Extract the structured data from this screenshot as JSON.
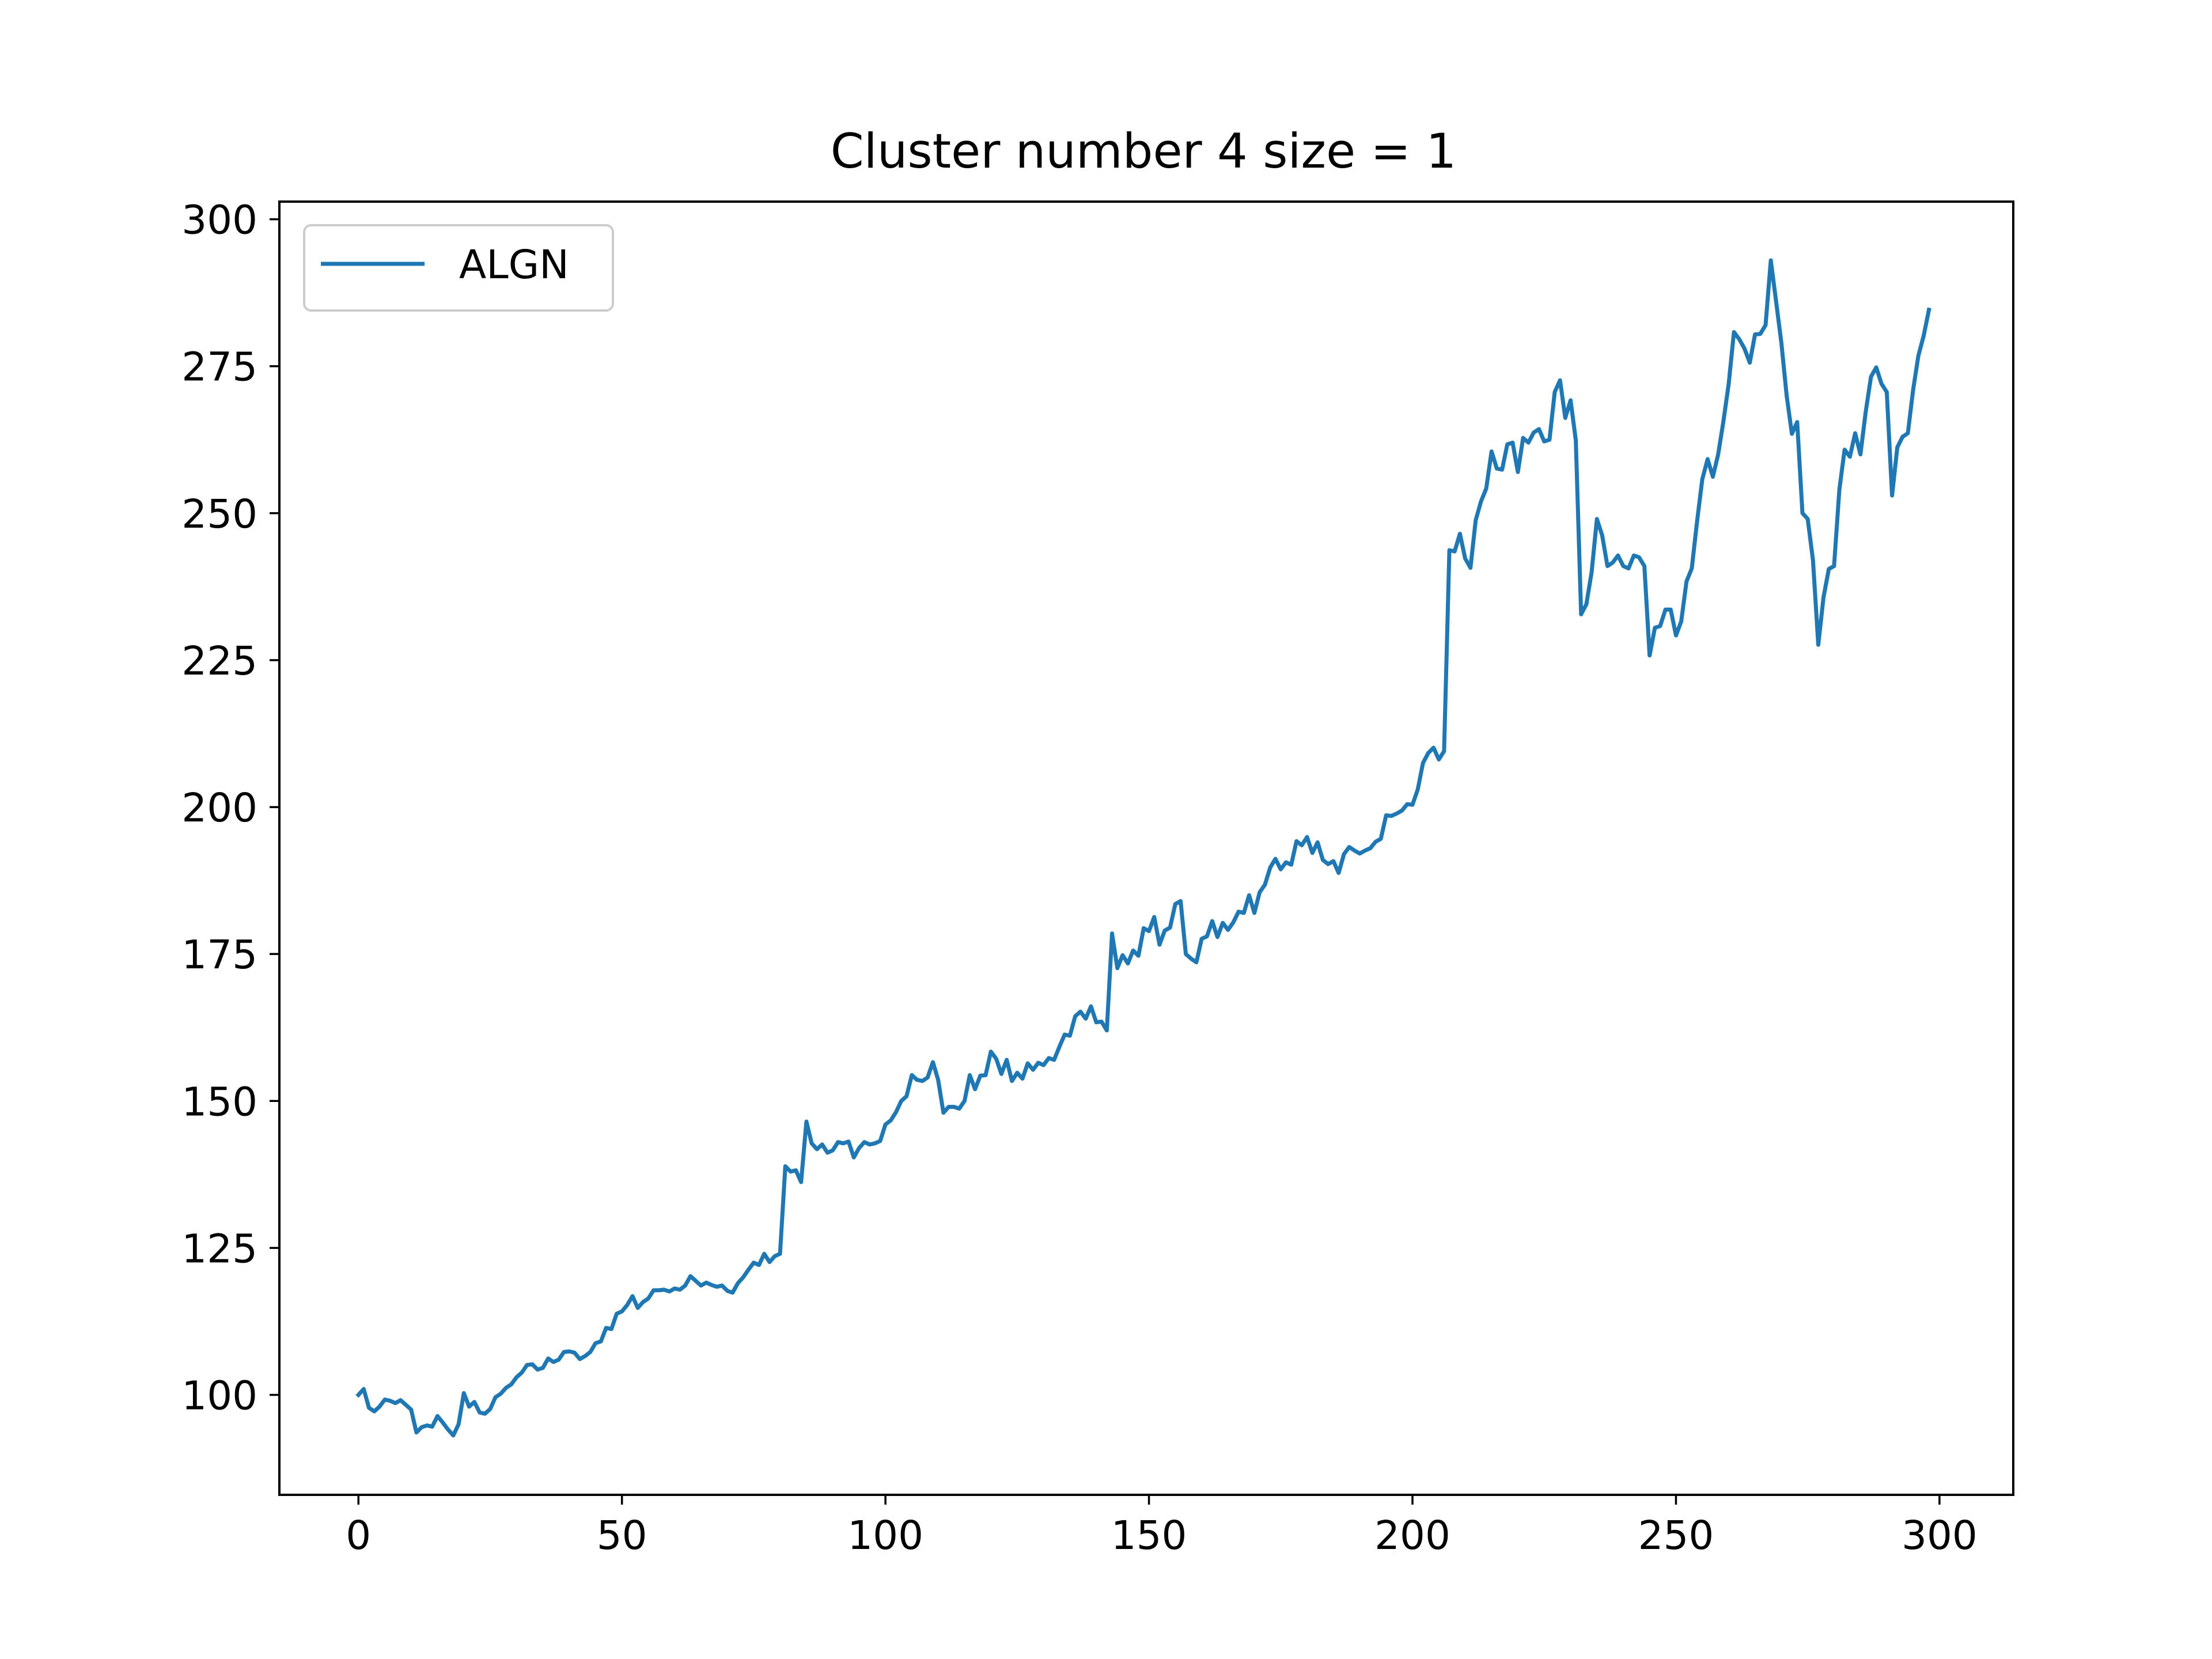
{
  "chart_data": {
    "type": "line",
    "title": "Cluster number 4 size = 1",
    "xlabel": "",
    "ylabel": "",
    "xlim": [
      -15,
      314
    ],
    "ylim": [
      83,
      303
    ],
    "xticks": [
      0,
      50,
      100,
      150,
      200,
      250,
      300
    ],
    "yticks": [
      100,
      125,
      150,
      175,
      200,
      225,
      250,
      275,
      300
    ],
    "grid": false,
    "legend": "top-left",
    "series": [
      {
        "name": "ALGN",
        "color": "#1f77b4",
        "x_start": 0,
        "x_step": 1,
        "values": [
          100.0,
          101.0,
          97.8,
          97.2,
          98.0,
          99.2,
          99.0,
          98.6,
          99.1,
          98.3,
          97.5,
          93.6,
          94.5,
          94.8,
          94.6,
          96.4,
          95.3,
          94.1,
          93.1,
          95.0,
          100.3,
          98.0,
          98.8,
          97.0,
          96.8,
          97.6,
          99.6,
          100.2,
          101.2,
          101.8,
          103.0,
          103.8,
          105.1,
          105.2,
          104.3,
          104.6,
          106.2,
          105.6,
          106.0,
          107.3,
          107.4,
          107.2,
          106.1,
          106.6,
          107.3,
          108.8,
          109.1,
          111.4,
          111.2,
          113.8,
          114.2,
          115.3,
          116.8,
          114.8,
          115.8,
          116.4,
          117.8,
          117.8,
          117.9,
          117.6,
          118.1,
          117.9,
          118.6,
          120.2,
          119.4,
          118.6,
          119.1,
          118.7,
          118.4,
          118.6,
          117.7,
          117.4,
          119.0,
          120.0,
          121.3,
          122.5,
          122.1,
          124.0,
          122.6,
          123.6,
          124.0,
          138.9,
          138.0,
          138.2,
          136.2,
          146.5,
          142.8,
          141.8,
          142.6,
          141.2,
          141.6,
          143.0,
          142.8,
          143.1,
          140.4,
          142.0,
          143.0,
          142.6,
          142.8,
          143.2,
          146.0,
          146.7,
          148.1,
          150.0,
          150.8,
          154.4,
          153.6,
          153.4,
          154.0,
          156.6,
          153.6,
          148.0,
          149.0,
          149.0,
          148.7,
          150.0,
          154.4,
          152.0,
          154.3,
          154.4,
          158.4,
          157.2,
          154.6,
          157.0,
          153.4,
          154.8,
          153.8,
          156.4,
          155.3,
          156.5,
          156.1,
          157.3,
          157.0,
          159.2,
          161.3,
          161.1,
          164.4,
          165.2,
          164.0,
          166.1,
          163.4,
          163.5,
          162.0,
          178.5,
          172.6,
          174.8,
          173.4,
          175.6,
          174.7,
          179.4,
          178.9,
          181.3,
          176.6,
          179.0,
          179.5,
          183.5,
          184.0,
          175.0,
          174.2,
          173.6,
          177.6,
          178.0,
          180.6,
          177.9,
          180.3,
          179.1,
          180.4,
          182.2,
          182.0,
          185.0,
          182.0,
          185.5,
          186.8,
          189.7,
          191.2,
          189.4,
          190.6,
          190.2,
          194.2,
          193.5,
          194.9,
          192.2,
          194.0,
          191.0,
          190.3,
          190.8,
          188.8,
          192.0,
          193.2,
          192.6,
          192.1,
          192.6,
          193.0,
          194.1,
          194.6,
          198.6,
          198.5,
          198.9,
          199.4,
          200.5,
          200.4,
          203.0,
          207.5,
          209.2,
          210.1,
          208.1,
          209.5,
          243.7,
          243.5,
          246.5,
          242.3,
          240.7,
          248.8,
          252.0,
          254.2,
          260.5,
          257.6,
          257.4,
          261.7,
          262.0,
          257.0,
          262.8,
          262.0,
          263.7,
          264.3,
          262.2,
          262.5,
          270.6,
          272.6,
          266.2,
          269.2,
          262.4,
          232.8,
          234.5,
          240.0,
          249.0,
          246.2,
          241.0,
          241.6,
          242.8,
          241.0,
          240.6,
          242.8,
          242.5,
          241.0,
          225.8,
          230.5,
          230.8,
          233.6,
          233.6,
          229.2,
          231.6,
          238.4,
          240.6,
          248.6,
          255.8,
          259.2,
          256.2,
          260.0,
          265.6,
          272.0,
          280.8,
          279.6,
          278.0,
          275.6,
          280.4,
          280.5,
          282.0,
          293.0,
          286.0,
          279.0,
          270.0,
          263.5,
          265.5,
          250.0,
          249.0,
          242.0,
          227.6,
          235.7,
          240.5,
          241.0,
          254.0,
          260.8,
          259.6,
          263.6,
          260.0,
          267.2,
          273.2,
          274.8,
          272.0,
          270.6,
          253.0,
          261.2,
          263.0,
          263.6,
          271.0,
          276.8,
          280.2,
          284.6
        ]
      }
    ]
  }
}
